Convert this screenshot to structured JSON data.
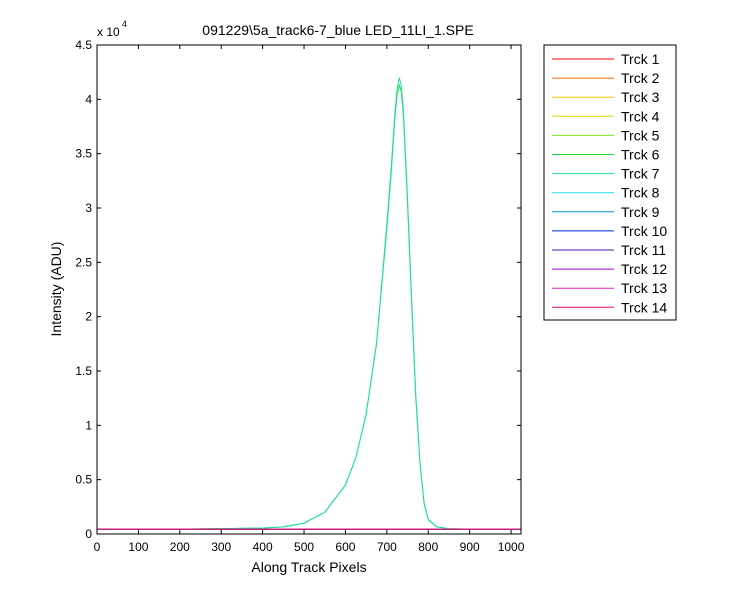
{
  "chart_data": {
    "type": "line",
    "title": "091229\\5a_track6-7_blue LED_11LI_1.SPE",
    "xlabel": "Along Track Pixels",
    "ylabel": "Intensity (ADU)",
    "y_multiplier_base": "x 10",
    "y_multiplier_exponent": "4",
    "xlim": [
      0,
      1024
    ],
    "ylim": [
      0,
      45000
    ],
    "x_ticks": [
      0,
      100,
      200,
      300,
      400,
      500,
      600,
      700,
      800,
      900,
      1000
    ],
    "x_tick_labels": [
      "0",
      "100",
      "200",
      "300",
      "400",
      "500",
      "600",
      "700",
      "800",
      "900",
      "1000"
    ],
    "y_ticks": [
      0,
      5000,
      10000,
      15000,
      20000,
      25000,
      30000,
      35000,
      40000,
      45000
    ],
    "y_tick_labels": [
      "0",
      "0.5",
      "1",
      "1.5",
      "2",
      "2.5",
      "3",
      "3.5",
      "4",
      "4.5"
    ],
    "grid": false,
    "legend_position": "outside-right",
    "x": [
      0,
      100,
      200,
      300,
      400,
      450,
      500,
      550,
      600,
      625,
      650,
      675,
      700,
      710,
      720,
      725,
      730,
      735,
      740,
      750,
      760,
      770,
      780,
      790,
      800,
      820,
      850,
      900,
      1000,
      1024
    ],
    "series": [
      {
        "name": "Trck 1",
        "color": "#ff0000",
        "values": [
          450,
          450,
          450,
          450,
          450,
          450,
          450,
          450,
          450,
          450,
          450,
          450,
          450,
          450,
          450,
          450,
          450,
          450,
          450,
          450,
          450,
          450,
          450,
          450,
          450,
          450,
          450,
          450,
          450,
          450
        ]
      },
      {
        "name": "Trck 2",
        "color": "#ff6000",
        "values": [
          450,
          450,
          450,
          450,
          450,
          450,
          450,
          450,
          450,
          450,
          450,
          450,
          450,
          450,
          450,
          450,
          450,
          450,
          450,
          450,
          450,
          450,
          450,
          450,
          450,
          450,
          450,
          450,
          450,
          450
        ]
      },
      {
        "name": "Trck 3",
        "color": "#ffc000",
        "values": [
          450,
          450,
          450,
          450,
          450,
          450,
          450,
          450,
          450,
          450,
          450,
          450,
          450,
          450,
          450,
          450,
          450,
          450,
          450,
          450,
          450,
          450,
          450,
          450,
          450,
          450,
          450,
          450,
          450,
          450
        ]
      },
      {
        "name": "Trck 4",
        "color": "#d8e000",
        "values": [
          450,
          450,
          450,
          450,
          450,
          450,
          450,
          450,
          450,
          450,
          450,
          450,
          450,
          450,
          450,
          450,
          450,
          450,
          450,
          450,
          450,
          450,
          450,
          450,
          450,
          450,
          450,
          450,
          450,
          450
        ]
      },
      {
        "name": "Trck 5",
        "color": "#80e020",
        "values": [
          450,
          450,
          450,
          450,
          450,
          450,
          450,
          450,
          450,
          450,
          450,
          450,
          450,
          450,
          450,
          450,
          450,
          450,
          450,
          450,
          450,
          450,
          450,
          450,
          450,
          450,
          450,
          450,
          450,
          450
        ]
      },
      {
        "name": "Trck 6",
        "color": "#20e040",
        "values": [
          450,
          450,
          450,
          500,
          550,
          650,
          1000,
          2000,
          4500,
          7000,
          11000,
          17500,
          28000,
          33000,
          38500,
          40500,
          41300,
          40700,
          38500,
          30500,
          21000,
          12500,
          6500,
          2800,
          1300,
          650,
          480,
          450,
          450,
          450
        ]
      },
      {
        "name": "Trck 7",
        "color": "#20e0a0",
        "values": [
          450,
          450,
          450,
          500,
          550,
          650,
          1000,
          2000,
          4500,
          7000,
          11000,
          17500,
          28500,
          33500,
          39000,
          41000,
          42000,
          41200,
          39000,
          31000,
          21500,
          12800,
          6600,
          2900,
          1350,
          660,
          480,
          450,
          450,
          450
        ]
      },
      {
        "name": "Trck 8",
        "color": "#20e0e0",
        "values": [
          450,
          450,
          450,
          450,
          450,
          450,
          450,
          450,
          450,
          450,
          450,
          450,
          450,
          450,
          450,
          450,
          450,
          450,
          450,
          450,
          450,
          450,
          450,
          450,
          450,
          450,
          450,
          450,
          450,
          450
        ]
      },
      {
        "name": "Trck 9",
        "color": "#0090c8",
        "values": [
          450,
          450,
          450,
          450,
          450,
          450,
          450,
          450,
          450,
          450,
          450,
          450,
          450,
          450,
          450,
          450,
          450,
          450,
          450,
          450,
          450,
          450,
          450,
          450,
          450,
          450,
          450,
          450,
          450,
          450
        ]
      },
      {
        "name": "Trck 10",
        "color": "#0020e0",
        "values": [
          450,
          450,
          450,
          450,
          450,
          450,
          450,
          450,
          450,
          450,
          450,
          450,
          450,
          450,
          450,
          450,
          450,
          450,
          450,
          450,
          450,
          450,
          450,
          450,
          450,
          450,
          450,
          450,
          450,
          450
        ]
      },
      {
        "name": "Trck 11",
        "color": "#5010b0",
        "values": [
          450,
          450,
          450,
          450,
          450,
          450,
          450,
          450,
          450,
          450,
          450,
          450,
          450,
          450,
          450,
          450,
          450,
          450,
          450,
          450,
          450,
          450,
          450,
          450,
          450,
          450,
          450,
          450,
          450,
          450
        ]
      },
      {
        "name": "Trck 12",
        "color": "#a000c8",
        "values": [
          450,
          450,
          450,
          450,
          450,
          450,
          450,
          450,
          450,
          450,
          450,
          450,
          450,
          450,
          450,
          450,
          450,
          450,
          450,
          450,
          450,
          450,
          450,
          450,
          450,
          450,
          450,
          450,
          450,
          450
        ]
      },
      {
        "name": "Trck 13",
        "color": "#e020b0",
        "values": [
          450,
          450,
          450,
          450,
          450,
          450,
          450,
          450,
          450,
          450,
          450,
          450,
          450,
          450,
          450,
          450,
          450,
          450,
          450,
          450,
          450,
          450,
          450,
          450,
          450,
          450,
          450,
          450,
          450,
          450
        ]
      },
      {
        "name": "Trck 14",
        "color": "#e01060",
        "values": [
          450,
          450,
          450,
          450,
          450,
          450,
          450,
          450,
          450,
          450,
          450,
          450,
          450,
          450,
          450,
          450,
          450,
          450,
          450,
          450,
          450,
          450,
          450,
          450,
          450,
          450,
          450,
          450,
          450,
          450
        ]
      }
    ]
  }
}
